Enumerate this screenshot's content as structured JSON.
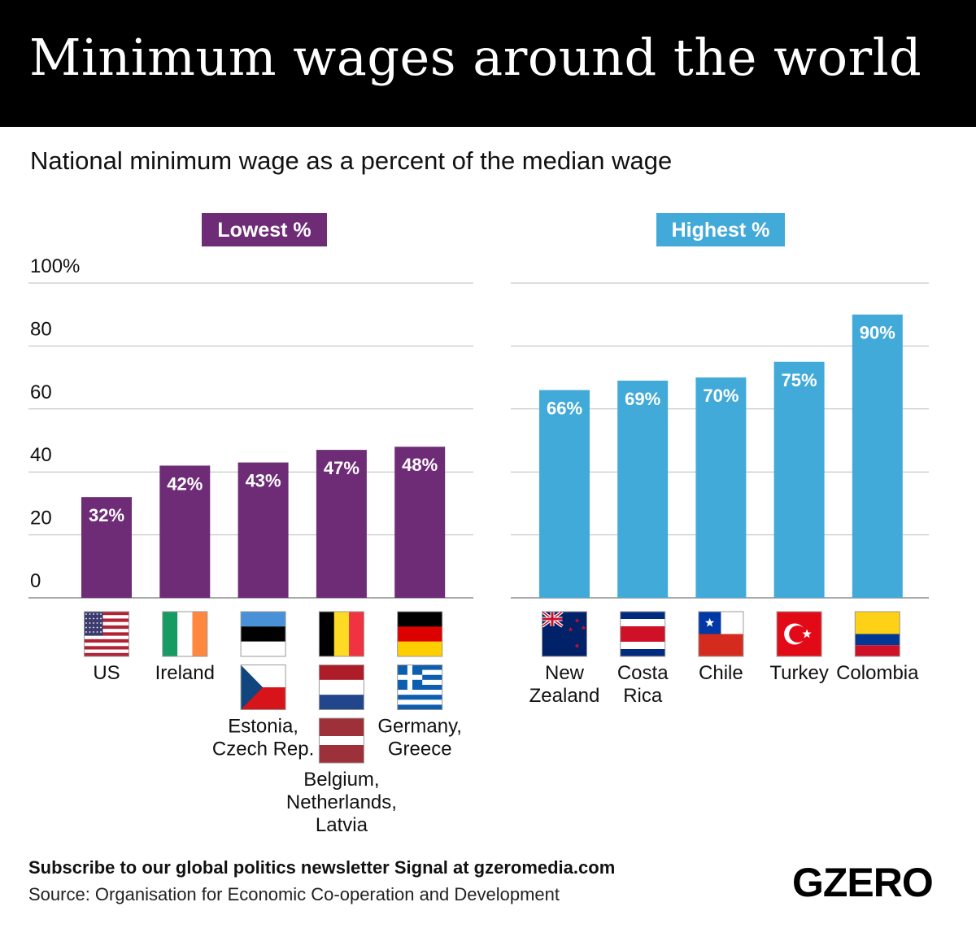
{
  "title": "Minimum wages around the world",
  "subtitle": "National minimum wage as a percent of the median wage",
  "footer": {
    "subscribe": "Subscribe to our global politics newsletter Signal at gzeromedia.com",
    "source": "Source: Organisation for Economic Co-operation and Development",
    "logo": "GZERO"
  },
  "chart_data": [
    {
      "type": "bar",
      "title": "Lowest %",
      "title_color": "#6e2c77",
      "bar_color": "#6e2c77",
      "ylim": [
        0,
        100
      ],
      "yticks": [
        "0",
        "20",
        "40",
        "60",
        "80",
        "100%"
      ],
      "grid": true,
      "categories": [
        {
          "lines": [
            "US"
          ],
          "flags": [
            "us"
          ]
        },
        {
          "lines": [
            "Ireland"
          ],
          "flags": [
            "ireland"
          ]
        },
        {
          "lines": [
            "Estonia,",
            "Czech Rep."
          ],
          "flags": [
            "estonia",
            "czech"
          ]
        },
        {
          "lines": [
            "Belgium,",
            "Netherlands,",
            "Latvia"
          ],
          "flags": [
            "belgium",
            "netherlands",
            "latvia"
          ]
        },
        {
          "lines": [
            "Germany,",
            "Greece"
          ],
          "flags": [
            "germany",
            "greece"
          ]
        }
      ],
      "values": [
        32,
        42,
        43,
        47,
        48
      ],
      "labels": [
        "32%",
        "42%",
        "43%",
        "47%",
        "48%"
      ]
    },
    {
      "type": "bar",
      "title": "Highest %",
      "title_color": "#42aad9",
      "bar_color": "#42aad9",
      "ylim": [
        0,
        100
      ],
      "grid": true,
      "categories": [
        {
          "lines": [
            "New",
            "Zealand"
          ],
          "flags": [
            "newzealand"
          ]
        },
        {
          "lines": [
            "Costa",
            "Rica"
          ],
          "flags": [
            "costarica"
          ]
        },
        {
          "lines": [
            "Chile"
          ],
          "flags": [
            "chile"
          ]
        },
        {
          "lines": [
            "Turkey"
          ],
          "flags": [
            "turkey"
          ]
        },
        {
          "lines": [
            "Colombia"
          ],
          "flags": [
            "colombia"
          ]
        }
      ],
      "values": [
        66,
        69,
        70,
        75,
        90
      ],
      "labels": [
        "66%",
        "69%",
        "70%",
        "75%",
        "90%"
      ]
    }
  ]
}
